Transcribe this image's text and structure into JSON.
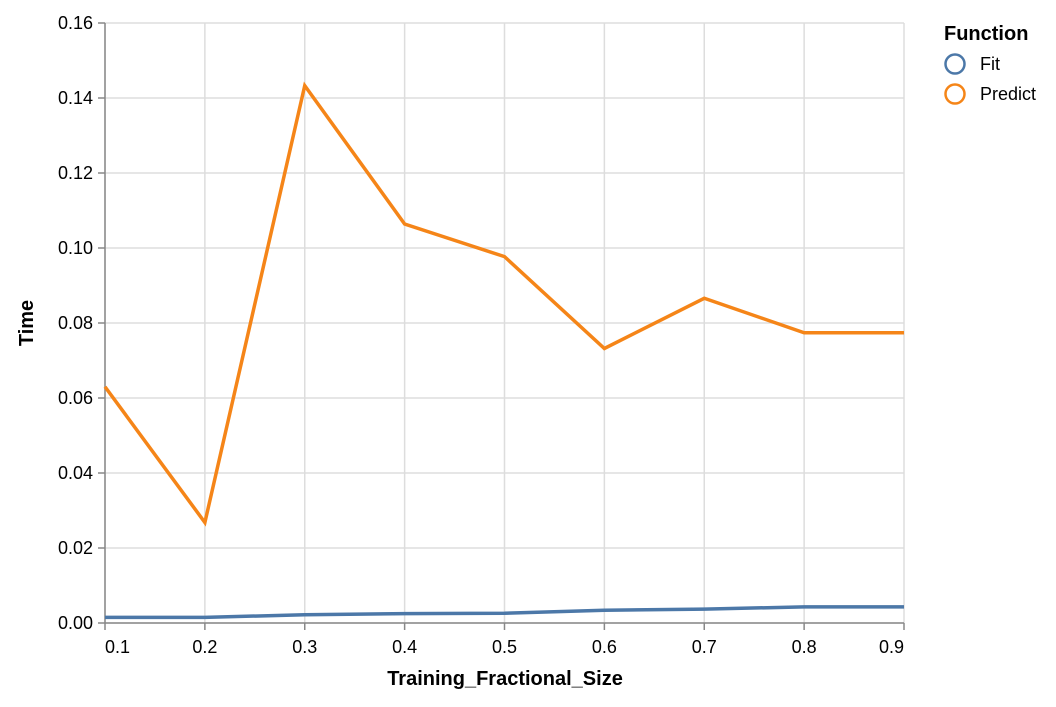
{
  "chart_data": {
    "type": "line",
    "xlabel": "Training_Fractional_Size",
    "ylabel": "Time",
    "xlim": [
      0.1,
      0.9
    ],
    "ylim": [
      0,
      0.16
    ],
    "x_ticks": [
      "0.1",
      "0.2",
      "0.3",
      "0.4",
      "0.5",
      "0.6",
      "0.7",
      "0.8",
      "0.9"
    ],
    "y_ticks": [
      "0.00",
      "0.02",
      "0.04",
      "0.06",
      "0.08",
      "0.10",
      "0.12",
      "0.14",
      "0.16"
    ],
    "grid": true,
    "legend": {
      "title": "Function",
      "placement": "top-right"
    },
    "x": [
      0.1,
      0.2,
      0.3,
      0.4,
      0.5,
      0.6,
      0.7,
      0.8,
      0.9
    ],
    "series": [
      {
        "name": "Fit",
        "color": "#4c78a8",
        "values": [
          0.0015,
          0.0015,
          0.0022,
          0.0025,
          0.0026,
          0.0034,
          0.0037,
          0.0043,
          0.0043
        ]
      },
      {
        "name": "Predict",
        "color": "#f58518",
        "values": [
          0.063,
          0.0268,
          0.1433,
          0.1064,
          0.0977,
          0.0732,
          0.0866,
          0.0774,
          0.0774
        ]
      }
    ]
  }
}
